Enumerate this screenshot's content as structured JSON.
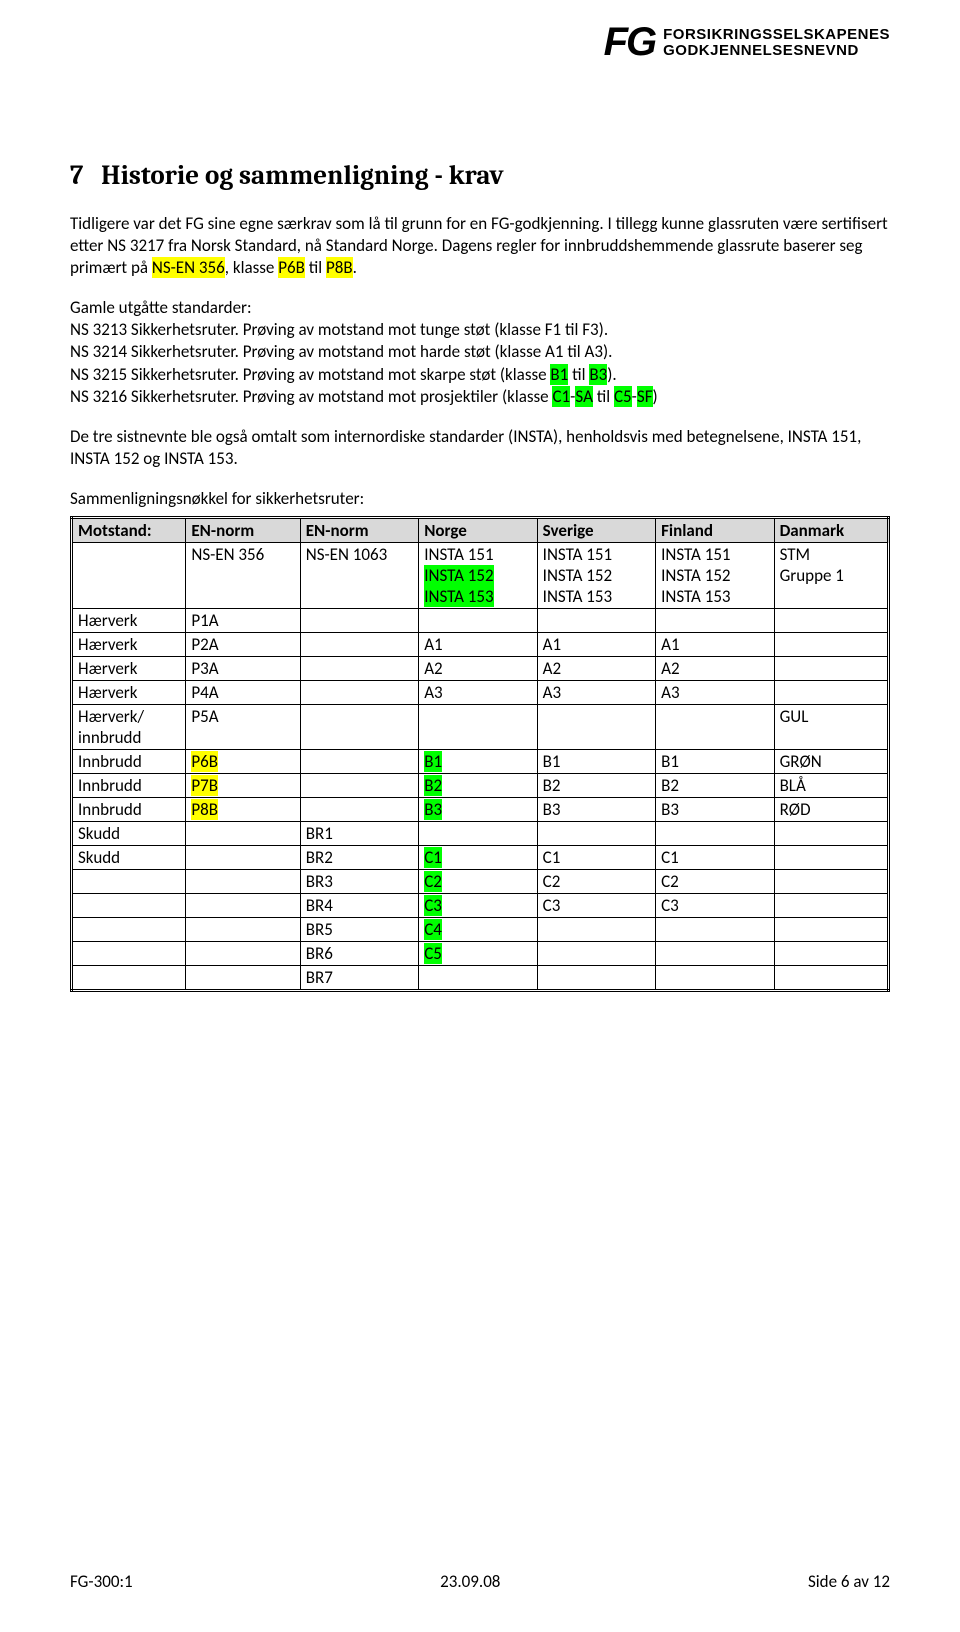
{
  "header": {
    "logo_initials": "FG",
    "logo_text_1": "FORSIKRINGSSELSKAPENES",
    "logo_text_2": "GODKJENNELSESNEVND"
  },
  "title_num": "7",
  "title": "Historie og sammenligning - krav",
  "p1_a": "Tidligere var det FG sine egne særkrav som lå til grunn for en FG-godkjenning. I tillegg kunne glassruten være sertifisert etter NS 3217 fra Norsk Standard, nå Standard Norge. Dagens regler for innbruddshemmende glassrute baserer seg primært på ",
  "p1_hl1": "NS-EN 356",
  "p1_b": ", klasse ",
  "p1_hl2": "P6B",
  "p1_c": " til ",
  "p1_hl3": "P8B",
  "p1_d": ".",
  "p2_head": "Gamle utgåtte standarder:",
  "p2_l1": "NS 3213 Sikkerhetsruter. Prøving av motstand mot tunge støt (klasse F1 til F3).",
  "p2_l2": "NS 3214 Sikkerhetsruter. Prøving av motstand mot harde støt (klasse A1 til A3).",
  "p2_l3a": "NS 3215 Sikkerhetsruter. Prøving av motstand mot skarpe støt (klasse ",
  "p2_l3_hl1": "B1",
  "p2_l3b": " til ",
  "p2_l3_hl2": "B3",
  "p2_l3c": ").",
  "p2_l4a": "NS 3216 Sikkerhetsruter. Prøving av motstand mot prosjektiler (klasse ",
  "p2_l4_hl1": "C1",
  "p2_l4b": "-",
  "p2_l4_hl2": "SA",
  "p2_l4c": " til ",
  "p2_l4_hl3": "C5",
  "p2_l4d": "-",
  "p2_l4_hl4": "SF",
  "p2_l4e": ")",
  "p3": "De tre sistnevnte ble også omtalt som internordiske standarder (INSTA), henholdsvis med betegnelsene, INSTA 151, INSTA 152 og INSTA 153.",
  "table_caption": "Sammenligningsnøkkel for sikkerhetsruter:",
  "th": [
    "Motstand:",
    "EN-norm",
    "EN-norm",
    "Norge",
    "Sverige",
    "Finland",
    "Danmark"
  ],
  "r1": {
    "c2": "NS-EN 356",
    "c3": "NS-EN 1063",
    "c4a": "INSTA 151",
    "c4b": "INSTA 152",
    "c4c": "INSTA 153",
    "c5a": "INSTA 151",
    "c5b": "INSTA 152",
    "c5c": "INSTA 153",
    "c6a": "INSTA 151",
    "c6b": "INSTA 152",
    "c6c": "INSTA 153",
    "c7a": "STM",
    "c7b": "Gruppe 1"
  },
  "rows": [
    {
      "c1": "Hærverk",
      "c2": "P1A",
      "c2_hl": false,
      "c3": "",
      "c4": "",
      "c4_hl": false,
      "c5": "",
      "c6": "",
      "c7": ""
    },
    {
      "c1": "Hærverk",
      "c2": "P2A",
      "c2_hl": false,
      "c3": "",
      "c4": "A1",
      "c4_hl": false,
      "c5": "A1",
      "c6": "A1",
      "c7": ""
    },
    {
      "c1": "Hærverk",
      "c2": "P3A",
      "c2_hl": false,
      "c3": "",
      "c4": "A2",
      "c4_hl": false,
      "c5": "A2",
      "c6": "A2",
      "c7": ""
    },
    {
      "c1": "Hærverk",
      "c2": "P4A",
      "c2_hl": false,
      "c3": "",
      "c4": "A3",
      "c4_hl": false,
      "c5": "A3",
      "c6": "A3",
      "c7": ""
    },
    {
      "c1": "Hærverk/\ninnbrudd",
      "c2": "P5A",
      "c2_hl": false,
      "c3": "",
      "c4": "",
      "c4_hl": false,
      "c5": "",
      "c6": "",
      "c7": "GUL"
    },
    {
      "c1": "Innbrudd",
      "c2": "P6B",
      "c2_hl": true,
      "c3": "",
      "c4": "B1",
      "c4_hl": true,
      "c5": "B1",
      "c6": "B1",
      "c7": "GRØN"
    },
    {
      "c1": "Innbrudd",
      "c2": "P7B",
      "c2_hl": true,
      "c3": "",
      "c4": "B2",
      "c4_hl": true,
      "c5": "B2",
      "c6": "B2",
      "c7": "BLÅ"
    },
    {
      "c1": "Innbrudd",
      "c2": "P8B",
      "c2_hl": true,
      "c3": "",
      "c4": "B3",
      "c4_hl": true,
      "c5": "B3",
      "c6": "B3",
      "c7": "RØD"
    },
    {
      "c1": "Skudd",
      "c2": "",
      "c2_hl": false,
      "c3": "BR1",
      "c4": "",
      "c4_hl": false,
      "c5": "",
      "c6": "",
      "c7": ""
    },
    {
      "c1": "Skudd",
      "c2": "",
      "c2_hl": false,
      "c3": "BR2",
      "c4": "C1",
      "c4_hl": true,
      "c5": "C1",
      "c6": "C1",
      "c7": ""
    },
    {
      "c1": "",
      "c2": "",
      "c2_hl": false,
      "c3": "BR3",
      "c4": "C2",
      "c4_hl": true,
      "c5": "C2",
      "c6": "C2",
      "c7": ""
    },
    {
      "c1": "",
      "c2": "",
      "c2_hl": false,
      "c3": "BR4",
      "c4": "C3",
      "c4_hl": true,
      "c5": "C3",
      "c6": "C3",
      "c7": ""
    },
    {
      "c1": "",
      "c2": "",
      "c2_hl": false,
      "c3": "BR5",
      "c4": "C4",
      "c4_hl": true,
      "c5": "",
      "c6": "",
      "c7": ""
    },
    {
      "c1": "",
      "c2": "",
      "c2_hl": false,
      "c3": "BR6",
      "c4": "C5",
      "c4_hl": true,
      "c5": "",
      "c6": "",
      "c7": ""
    },
    {
      "c1": "",
      "c2": "",
      "c2_hl": false,
      "c3": "BR7",
      "c4": "",
      "c4_hl": false,
      "c5": "",
      "c6": "",
      "c7": ""
    }
  ],
  "footer": {
    "left": "FG-300:1",
    "mid": "23.09.08",
    "right": "Side 6 av 12"
  },
  "colors": {
    "highlight_yellow": "#ffff00",
    "highlight_green": "#00ff00",
    "table_head_bg": "#d9d9d9"
  }
}
